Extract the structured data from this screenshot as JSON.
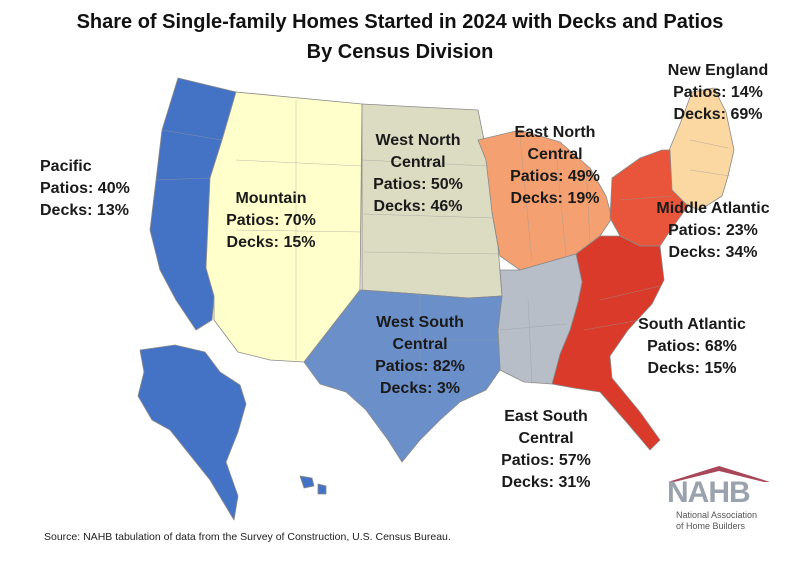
{
  "title": {
    "line1": "Share of Single-family Homes Started in 2024 with Decks and Patios",
    "line2": "By Census Division"
  },
  "colors": {
    "pacific": "#4472c4",
    "mountain": "#ffffcc",
    "west_north_central": "#dcdcc3",
    "east_north_central": "#f4a070",
    "new_england": "#fbd7a1",
    "middle_atlantic": "#e8553a",
    "south_atlantic": "#d93a2a",
    "east_south_central": "#b7bec8",
    "west_south_central": "#6b8fc9"
  },
  "divisions": [
    {
      "name": "Pacific",
      "name_line2": "",
      "patios": "Patios: 40%",
      "decks": "Decks: 13%"
    },
    {
      "name": "Mountain",
      "name_line2": "",
      "patios": "Patios: 70%",
      "decks": "Decks: 15%"
    },
    {
      "name": "West North",
      "name_line2": "Central",
      "patios": "Patios: 50%",
      "decks": "Decks: 46%"
    },
    {
      "name": "East North",
      "name_line2": "Central",
      "patios": "Patios: 49%",
      "decks": "Decks: 19%"
    },
    {
      "name": "New England",
      "name_line2": "",
      "patios": "Patios: 14%",
      "decks": "Decks: 69%"
    },
    {
      "name": "Middle Atlantic",
      "name_line2": "",
      "patios": "Patios: 23%",
      "decks": "Decks: 34%"
    },
    {
      "name": "South Atlantic",
      "name_line2": "",
      "patios": "Patios: 68%",
      "decks": "Decks: 15%"
    },
    {
      "name": "East South",
      "name_line2": "Central",
      "patios": "Patios: 57%",
      "decks": "Decks: 31%"
    },
    {
      "name": "West South",
      "name_line2": "Central",
      "patios": "Patios: 82%",
      "decks": "Decks: 3%"
    }
  ],
  "source": "Source: NAHB tabulation of data from the Survey of Construction, U.S. Census Bureau.",
  "logo": {
    "text": "NAHB",
    "sub_line1": "National Association",
    "sub_line2": "of Home Builders"
  }
}
